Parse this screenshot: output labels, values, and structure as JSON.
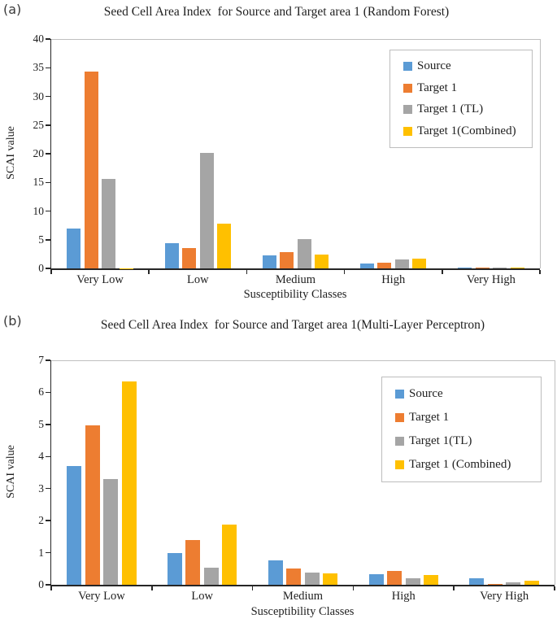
{
  "figure": {
    "panels": [
      {
        "panel_label": "(a)"
      },
      {
        "panel_label": "(b)"
      }
    ]
  },
  "chart_data": [
    {
      "type": "bar",
      "title": "Seed Cell Area Index  for Source and Target area 1 (Random Forest)",
      "xlabel": "Susceptibility Classes",
      "ylabel": "SCAI value",
      "categories": [
        "Very Low",
        "Low",
        "Medium",
        "High",
        "Very High"
      ],
      "series": [
        {
          "name": "Source",
          "color": "#5B9BD5",
          "values": [
            7.0,
            4.35,
            2.2,
            0.85,
            0.2
          ]
        },
        {
          "name": "Target 1",
          "color": "#ED7D31",
          "values": [
            34.3,
            3.55,
            2.8,
            1.0,
            0.1
          ]
        },
        {
          "name": "Target 1 (TL)",
          "color": "#A5A5A5",
          "values": [
            15.6,
            20.2,
            5.1,
            1.6,
            0.15
          ]
        },
        {
          "name": "Target 1(Combined)",
          "color": "#FFC000",
          "values": [
            0.05,
            7.8,
            2.4,
            1.65,
            0.1
          ]
        }
      ],
      "ylim": [
        0,
        40
      ],
      "ytick_step": 5,
      "yticks": [
        0,
        5,
        10,
        15,
        20,
        25,
        30,
        35,
        40
      ],
      "grid": false,
      "legend_position": "top-right"
    },
    {
      "type": "bar",
      "title": "Seed Cell Area Index  for Source and Target area 1(Multi-Layer Perceptron)",
      "xlabel": "Susceptibility Classes",
      "ylabel": "SCAI value",
      "categories": [
        "Very Low",
        "Low",
        "Medium",
        "High",
        "Very High"
      ],
      "series": [
        {
          "name": "Source",
          "color": "#5B9BD5",
          "values": [
            3.7,
            1.0,
            0.75,
            0.32,
            0.2
          ]
        },
        {
          "name": "Target 1",
          "color": "#ED7D31",
          "values": [
            4.97,
            1.4,
            0.5,
            0.43,
            0.03
          ]
        },
        {
          "name": "Target 1(TL)",
          "color": "#A5A5A5",
          "values": [
            3.3,
            0.52,
            0.38,
            0.2,
            0.08
          ]
        },
        {
          "name": "Target 1 (Combined)",
          "color": "#FFC000",
          "values": [
            6.35,
            1.87,
            0.35,
            0.3,
            0.12
          ]
        }
      ],
      "ylim": [
        0,
        7
      ],
      "ytick_step": 1,
      "yticks": [
        0,
        1,
        2,
        3,
        4,
        5,
        6,
        7
      ],
      "grid": false,
      "legend_position": "top-right"
    }
  ]
}
